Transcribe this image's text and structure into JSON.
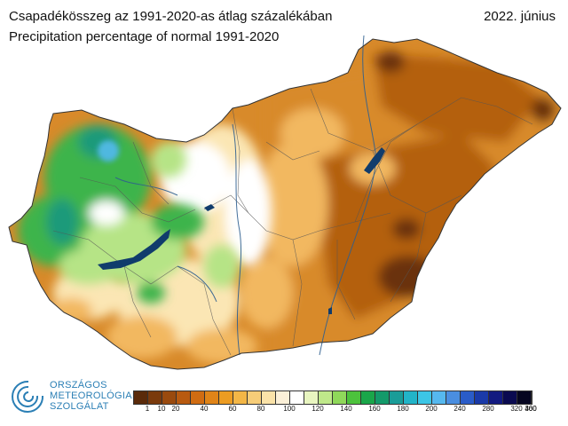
{
  "header": {
    "title_hu": "Csapadékösszeg az 1991-2020-as átlag százalékában",
    "title_en": "Precipitation percentage of normal 1991-2020",
    "date": "2022. június"
  },
  "logo": {
    "line1": "ORSZÁGOS",
    "line2": "METEOROLÓGIAI",
    "line3": "SZOLGÁLAT",
    "color": "#2b7fb5"
  },
  "legend": {
    "colors": [
      "#5a2a0a",
      "#7a3a0c",
      "#9a4a0e",
      "#b85a10",
      "#d06c12",
      "#e08418",
      "#ec9c22",
      "#f3b646",
      "#f7cd78",
      "#fae2a8",
      "#fbf0d8",
      "#ffffff",
      "#e8f5c0",
      "#bfe88a",
      "#8fd85a",
      "#4cc23c",
      "#1aa64a",
      "#149a6a",
      "#1a9c98",
      "#22b4c8",
      "#3cc6e6",
      "#56b8ee",
      "#4a8ee0",
      "#2a5cc8",
      "#1a3aa8",
      "#121a80",
      "#0a0a50",
      "#050520"
    ],
    "labels": [
      "1",
      "10",
      "20",
      "40",
      "60",
      "80",
      "100",
      "120",
      "140",
      "160",
      "180",
      "200",
      "240",
      "280",
      "320",
      "360",
      "400"
    ]
  },
  "map": {
    "lakes": [
      "Balaton",
      "Velencei-tó",
      "Tisza-tó"
    ],
    "palette": {
      "dry_deep": "#6a3008",
      "dry": "#b4600f",
      "orange": "#d88a2a",
      "light_orange": "#f2b860",
      "pale": "#fbe6b4",
      "white": "#ffffff",
      "light_green": "#b6e486",
      "green": "#3cb44c",
      "teal": "#1a9a7a",
      "cyan": "#50b8e0",
      "lake": "#103c6c"
    }
  }
}
